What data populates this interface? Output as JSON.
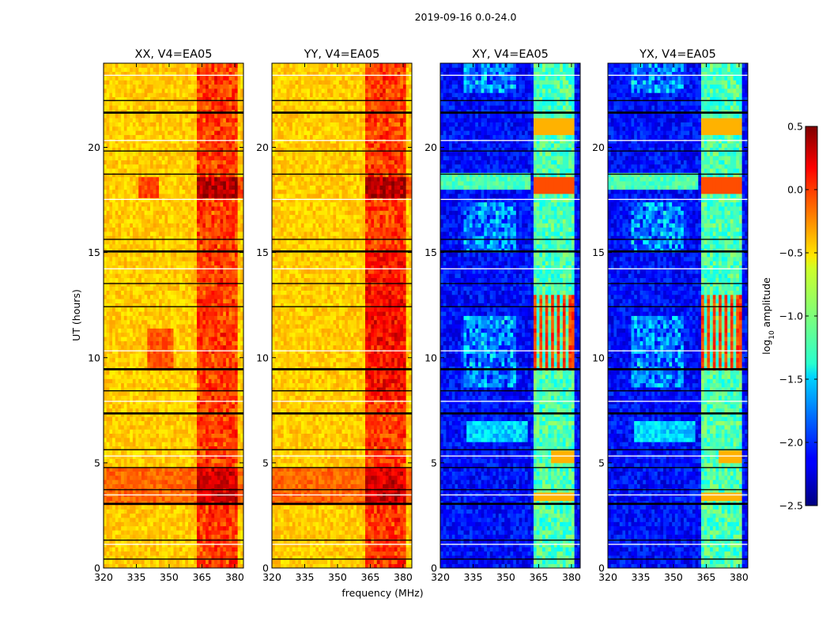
{
  "chart_data": {
    "type": "heatmap",
    "suptitle": "2019-09-16 0.0-24.0",
    "xlabel": "frequency (MHz)",
    "ylabel": "UT (hours)",
    "xlim": [
      320,
      384
    ],
    "ylim": [
      0,
      24
    ],
    "xticks": [
      320,
      335,
      350,
      365,
      380
    ],
    "yticks": [
      0,
      5,
      10,
      15,
      20
    ],
    "panels": [
      {
        "title": "XX, V4=EA05",
        "product": "XX"
      },
      {
        "title": "YY, V4=EA05",
        "product": "YY"
      },
      {
        "title": "XY, V4=EA05",
        "product": "XY"
      },
      {
        "title": "YX, V4=EA05",
        "product": "YX"
      }
    ],
    "colorbar": {
      "label": "log10 amplitude",
      "label_base": "log",
      "label_sub": "10",
      "label_rest": " amplitude",
      "range": [
        -2.5,
        0.5
      ],
      "tick_values": [
        0.5,
        0.0,
        -0.5,
        -1.0,
        -1.5,
        -2.0,
        -2.5
      ],
      "tick_labels": [
        "0.5",
        "0.0",
        "−0.5",
        "−1.0",
        "−1.5",
        "−2.0",
        "−2.5"
      ],
      "colormap": "jet"
    },
    "flagged_bands_ut": [
      [
        0.4,
        0.45
      ],
      [
        1.1,
        1.15
      ],
      [
        1.3,
        1.35
      ],
      [
        3.0,
        3.1
      ],
      [
        3.45,
        3.5
      ],
      [
        3.7,
        3.75
      ],
      [
        4.75,
        4.8
      ],
      [
        5.3,
        5.35
      ],
      [
        5.6,
        5.65
      ],
      [
        7.3,
        7.4
      ],
      [
        7.9,
        7.95
      ],
      [
        8.4,
        8.45
      ],
      [
        9.4,
        9.5
      ],
      [
        10.3,
        10.35
      ],
      [
        12.4,
        12.45
      ],
      [
        13.5,
        13.55
      ],
      [
        14.2,
        14.25
      ],
      [
        15.0,
        15.1
      ],
      [
        15.6,
        15.65
      ],
      [
        17.5,
        17.55
      ],
      [
        18.7,
        18.75
      ],
      [
        19.8,
        19.85
      ],
      [
        20.3,
        20.35
      ],
      [
        21.6,
        21.7
      ],
      [
        22.2,
        22.25
      ],
      [
        23.4,
        23.45
      ]
    ],
    "notes": "Dynamic spectra of log10 amplitude versus frequency (320-384 MHz) and UT (0-24 h). Parallel hands (XX, YY) are mostly -0.8 to 0.3 (yellow-red); cross hands (XY, YX) are mostly -2.5 to -1.0 (blue) with strong RFI columns near 363-380 MHz. White/black horizontal bands are flagged or missing data."
  }
}
